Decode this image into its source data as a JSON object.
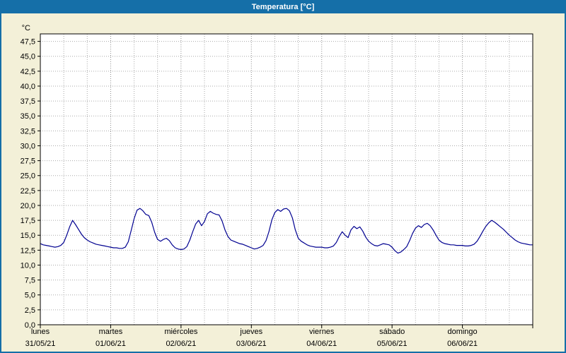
{
  "title": "Temperatura [°C]",
  "colors": {
    "titlebar": "#156fa8",
    "window_border": "#156fa8",
    "background": "#f3f0d8",
    "plot_background": "#ffffff",
    "plot_border": "#000000",
    "grid_minor": "#aaaaaa",
    "grid_day": "#8c8c8c",
    "line": "#000090",
    "text": "#000000"
  },
  "chart_data": {
    "type": "line",
    "title": "Temperatura [°C]",
    "xlabel": "",
    "ylabel": "°C",
    "ylim": [
      0,
      48.75
    ],
    "ytick_step": 2.5,
    "ytick_labels": [
      "0,0",
      "2,5",
      "5,0",
      "7,5",
      "10,0",
      "12,5",
      "15,0",
      "17,5",
      "20,0",
      "22,5",
      "25,0",
      "27,5",
      "30,0",
      "32,5",
      "35,0",
      "37,5",
      "40,0",
      "42,5",
      "45,0",
      "47,5"
    ],
    "x_total_hours": 168,
    "x_hours_per_point": 1,
    "grid": {
      "horizontal_step": 2.5,
      "vertical_step_hours": 8,
      "style": "dashed"
    },
    "legend_position": "none",
    "days": [
      {
        "name": "lunes",
        "date": "31/05/21"
      },
      {
        "name": "martes",
        "date": "01/06/21"
      },
      {
        "name": "miércoles",
        "date": "02/06/21"
      },
      {
        "name": "jueves",
        "date": "03/06/21"
      },
      {
        "name": "viernes",
        "date": "04/06/21"
      },
      {
        "name": "sábado",
        "date": "05/06/21"
      },
      {
        "name": "domingo",
        "date": "06/06/21"
      }
    ],
    "series": [
      {
        "name": "Temperatura",
        "values": [
          13.6,
          13.4,
          13.3,
          13.2,
          13.1,
          13.0,
          13.1,
          13.3,
          13.8,
          15.0,
          16.4,
          17.5,
          16.8,
          16.0,
          15.2,
          14.6,
          14.2,
          13.9,
          13.7,
          13.5,
          13.4,
          13.3,
          13.2,
          13.1,
          13.0,
          12.9,
          12.9,
          12.8,
          12.8,
          13.0,
          13.9,
          15.8,
          17.8,
          19.2,
          19.5,
          19.1,
          18.5,
          18.3,
          17.2,
          15.5,
          14.3,
          14.0,
          14.3,
          14.5,
          14.1,
          13.4,
          12.9,
          12.7,
          12.6,
          12.7,
          13.1,
          14.2,
          15.6,
          16.9,
          17.5,
          16.6,
          17.3,
          18.6,
          19.0,
          18.7,
          18.5,
          18.4,
          17.4,
          15.9,
          14.8,
          14.2,
          14.0,
          13.8,
          13.6,
          13.5,
          13.3,
          13.1,
          12.9,
          12.7,
          12.8,
          13.0,
          13.3,
          14.1,
          15.6,
          17.6,
          18.8,
          19.3,
          19.0,
          19.4,
          19.5,
          19.1,
          17.9,
          15.9,
          14.5,
          14.0,
          13.7,
          13.4,
          13.2,
          13.1,
          13.0,
          13.0,
          13.0,
          12.9,
          12.9,
          13.0,
          13.2,
          13.8,
          14.8,
          15.6,
          15.0,
          14.6,
          15.9,
          16.5,
          16.1,
          16.4,
          15.7,
          14.7,
          14.0,
          13.6,
          13.3,
          13.2,
          13.4,
          13.6,
          13.5,
          13.4,
          13.0,
          12.4,
          12.0,
          12.2,
          12.6,
          13.1,
          14.1,
          15.3,
          16.2,
          16.6,
          16.3,
          16.8,
          17.0,
          16.6,
          15.9,
          15.0,
          14.2,
          13.8,
          13.6,
          13.5,
          13.4,
          13.4,
          13.3,
          13.3,
          13.3,
          13.2,
          13.2,
          13.3,
          13.5,
          14.0,
          14.8,
          15.7,
          16.5,
          17.1,
          17.5,
          17.2,
          16.8,
          16.4,
          16.0,
          15.5,
          15.0,
          14.6,
          14.2,
          13.9,
          13.7,
          13.6,
          13.5,
          13.4,
          13.4
        ]
      }
    ]
  }
}
